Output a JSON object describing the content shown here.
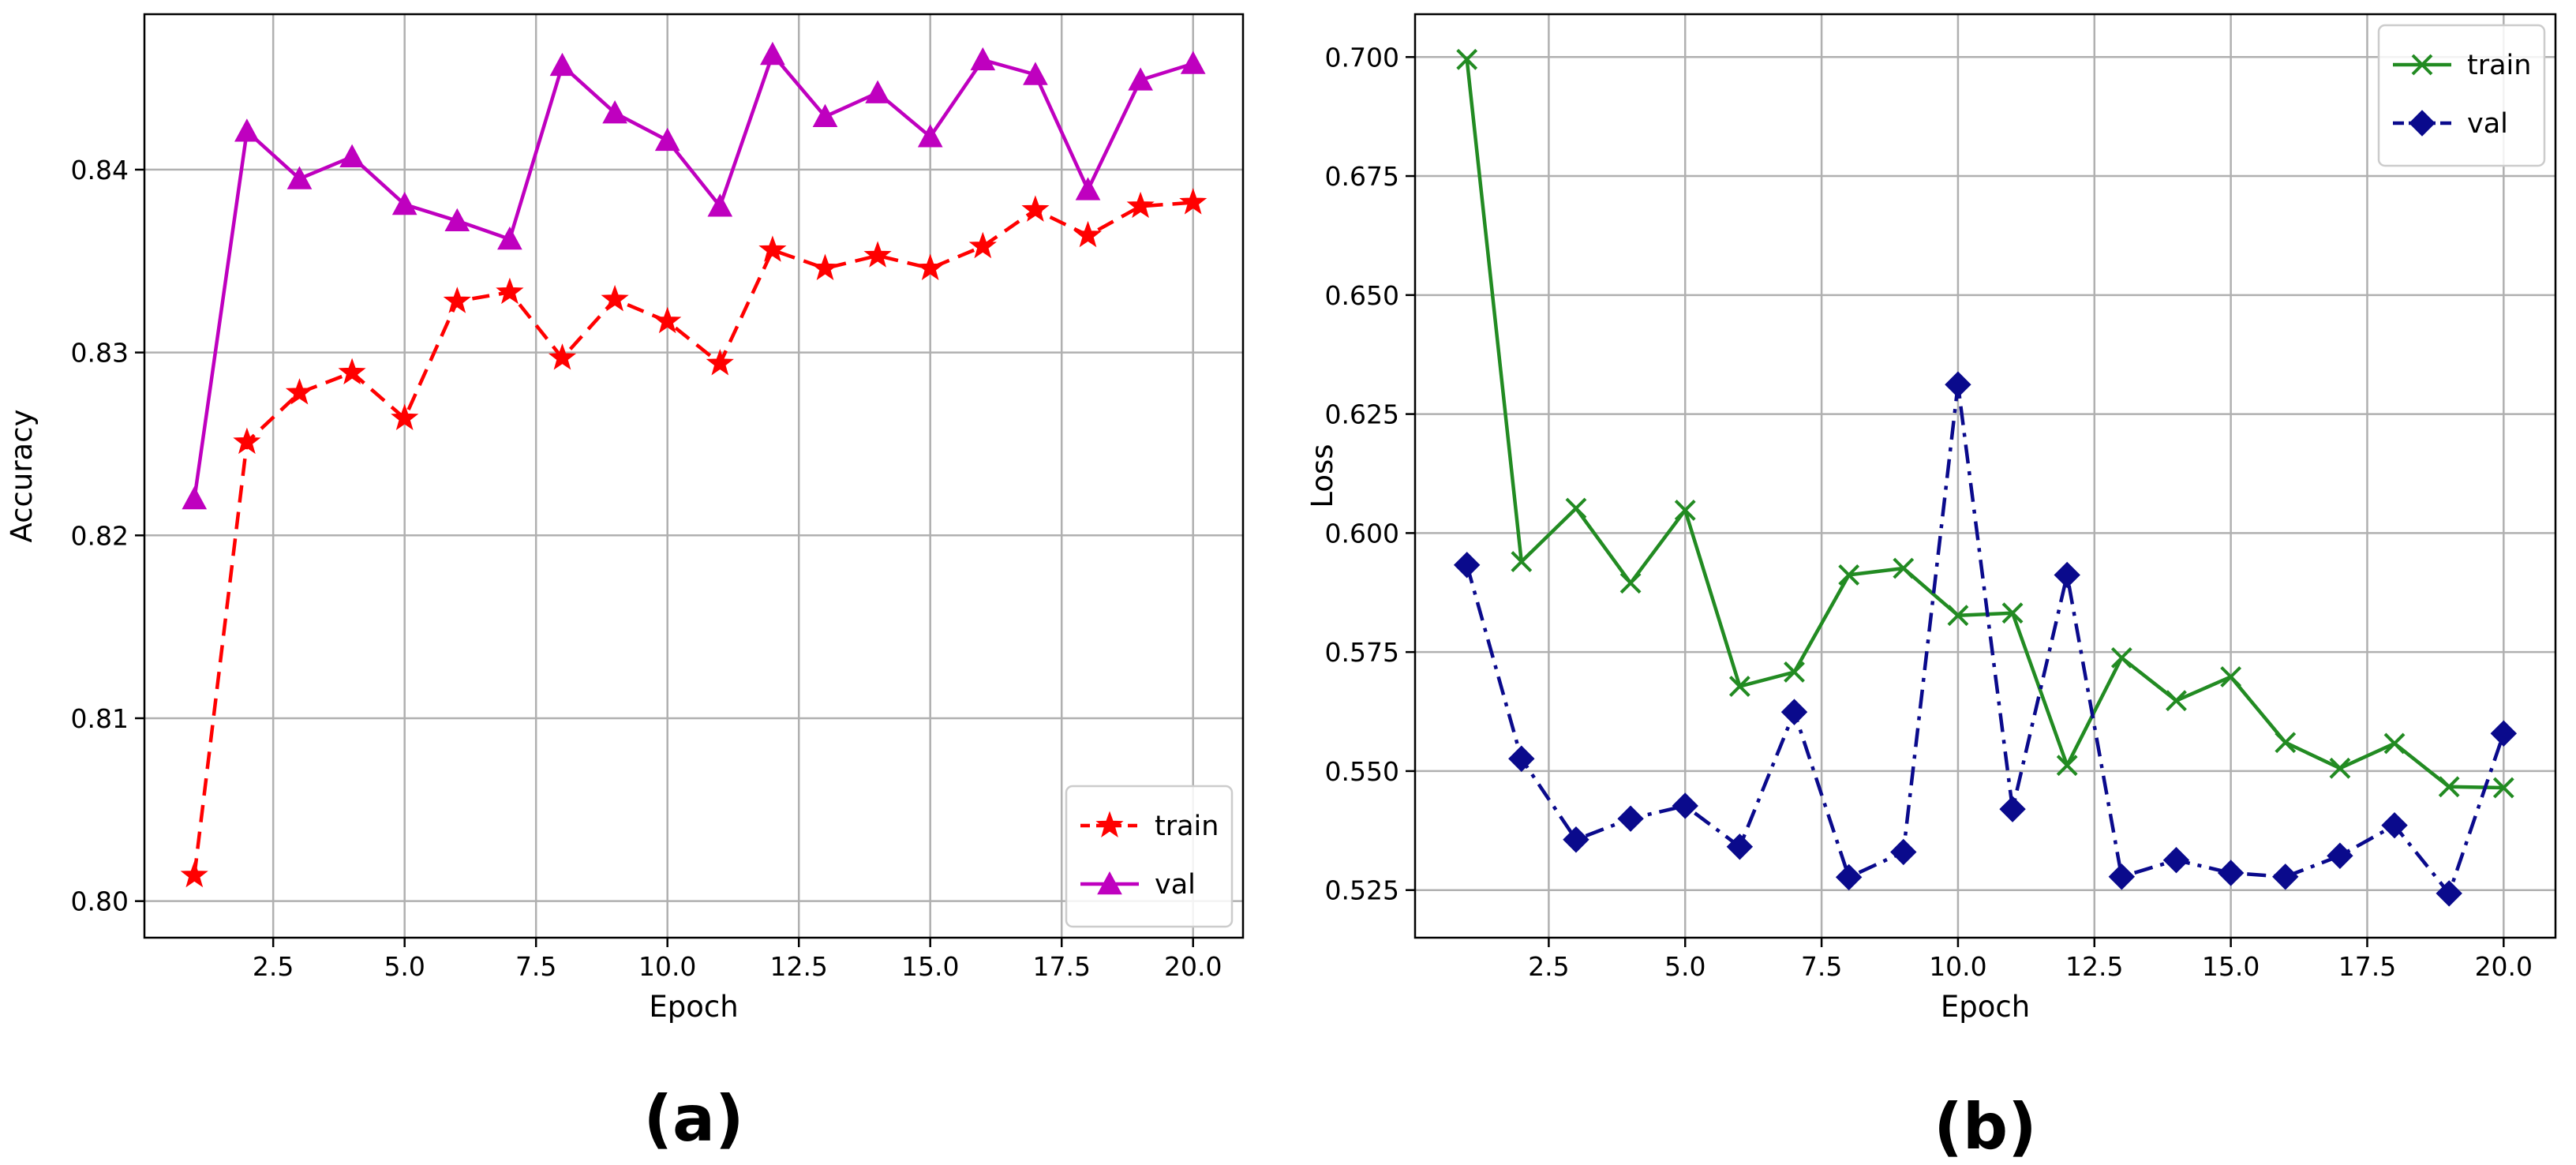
{
  "chart_data": [
    {
      "panel_label": "(a)",
      "type": "line",
      "xlabel": "Epoch",
      "ylabel": "Accuracy",
      "xlim": [
        0.05,
        20.95
      ],
      "ylim": [
        0.798,
        0.8485
      ],
      "xticks": [
        2.5,
        5.0,
        7.5,
        10.0,
        12.5,
        15.0,
        17.5,
        20.0
      ],
      "xtick_labels": [
        "2.5",
        "5.0",
        "7.5",
        "10.0",
        "12.5",
        "15.0",
        "17.5",
        "20.0"
      ],
      "yticks": [
        0.8,
        0.81,
        0.82,
        0.83,
        0.84
      ],
      "ytick_labels": [
        "0.80",
        "0.81",
        "0.82",
        "0.83",
        "0.84"
      ],
      "grid": true,
      "legend_position": "lower right",
      "x": [
        1,
        2,
        3,
        4,
        5,
        6,
        7,
        8,
        9,
        10,
        11,
        12,
        13,
        14,
        15,
        16,
        17,
        18,
        19,
        20
      ],
      "series": [
        {
          "name": "train",
          "color": "#ff0000",
          "linestyle": "dashed",
          "marker": "star",
          "values": [
            0.8014,
            0.8251,
            0.8278,
            0.8289,
            0.8264,
            0.8328,
            0.8333,
            0.8297,
            0.8329,
            0.8317,
            0.8294,
            0.8356,
            0.8346,
            0.8353,
            0.8346,
            0.8358,
            0.8378,
            0.8364,
            0.838,
            0.8382
          ]
        },
        {
          "name": "val",
          "color": "#bf00bf",
          "linestyle": "solid",
          "marker": "triangle",
          "values": [
            0.822,
            0.8421,
            0.8395,
            0.8407,
            0.8381,
            0.8372,
            0.8362,
            0.8457,
            0.8431,
            0.8416,
            0.838,
            0.8463,
            0.8429,
            0.8442,
            0.8418,
            0.846,
            0.8452,
            0.8389,
            0.8449,
            0.8458
          ]
        }
      ]
    },
    {
      "panel_label": "(b)",
      "type": "line",
      "xlabel": "Epoch",
      "ylabel": "Loss",
      "xlim": [
        0.05,
        20.95
      ],
      "ylim": [
        0.515,
        0.709
      ],
      "xticks": [
        2.5,
        5.0,
        7.5,
        10.0,
        12.5,
        15.0,
        17.5,
        20.0
      ],
      "xtick_labels": [
        "2.5",
        "5.0",
        "7.5",
        "10.0",
        "12.5",
        "15.0",
        "17.5",
        "20.0"
      ],
      "yticks": [
        0.525,
        0.55,
        0.575,
        0.6,
        0.625,
        0.65,
        0.675,
        0.7
      ],
      "ytick_labels": [
        "0.525",
        "0.550",
        "0.575",
        "0.600",
        "0.625",
        "0.650",
        "0.675",
        "0.700"
      ],
      "grid": true,
      "legend_position": "upper right",
      "x": [
        1,
        2,
        3,
        4,
        5,
        6,
        7,
        8,
        9,
        10,
        11,
        12,
        13,
        14,
        15,
        16,
        17,
        18,
        19,
        20
      ],
      "series": [
        {
          "name": "train",
          "color": "#228b22",
          "linestyle": "solid",
          "marker": "x",
          "values": [
            0.6995,
            0.594,
            0.6052,
            0.5895,
            0.6048,
            0.5678,
            0.5708,
            0.5912,
            0.5926,
            0.5827,
            0.5832,
            0.5512,
            0.5738,
            0.5648,
            0.5698,
            0.556,
            0.5506,
            0.5558,
            0.5467,
            0.5465
          ]
        },
        {
          "name": "val",
          "color": "#0a0a8c",
          "linestyle": "dashdot",
          "marker": "diamond",
          "values": [
            0.5933,
            0.5526,
            0.5356,
            0.54,
            0.5427,
            0.5341,
            0.5624,
            0.5277,
            0.533,
            0.6312,
            0.542,
            0.5912,
            0.5278,
            0.5313,
            0.5286,
            0.5278,
            0.5322,
            0.5386,
            0.5243,
            0.5579
          ]
        }
      ]
    }
  ]
}
